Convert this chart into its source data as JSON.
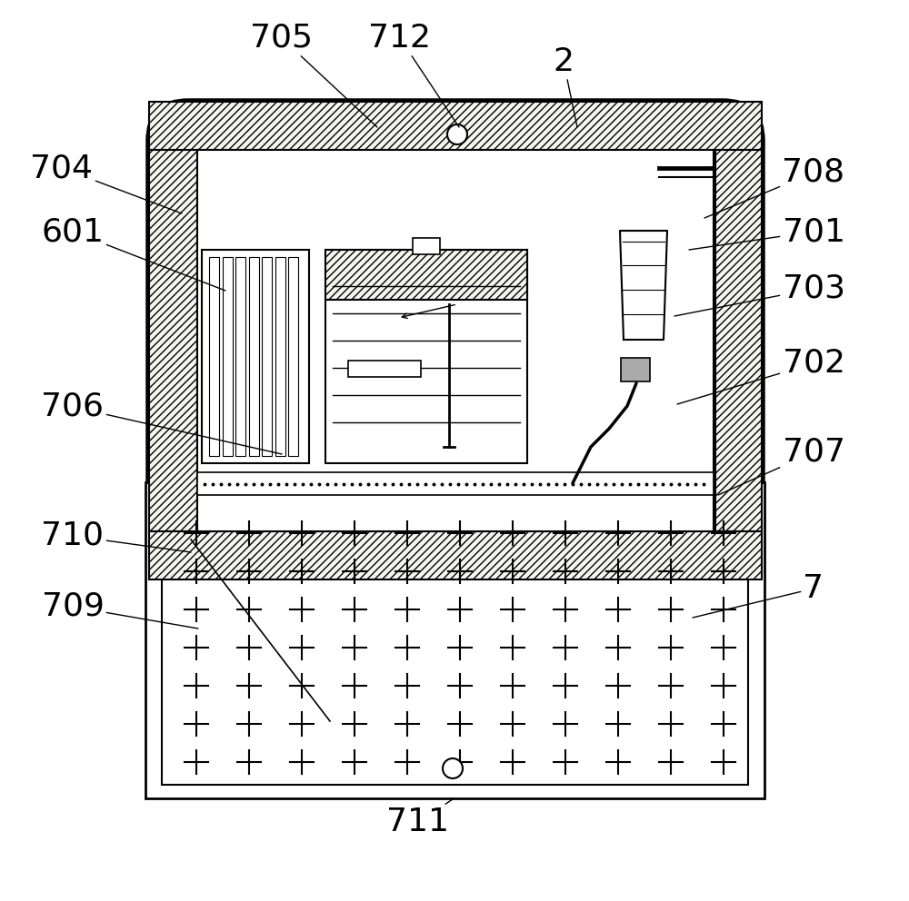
{
  "bg_color": "#ffffff",
  "line_color": "#000000",
  "figsize": [
    10.0,
    9.92
  ],
  "dpi": 100,
  "labels_data": [
    [
      "2",
      620,
      68,
      635,
      140
    ],
    [
      "705",
      310,
      42,
      415,
      140
    ],
    [
      "712",
      440,
      42,
      505,
      140
    ],
    [
      "704",
      68,
      185,
      200,
      235
    ],
    [
      "708",
      895,
      190,
      775,
      240
    ],
    [
      "601",
      80,
      255,
      248,
      320
    ],
    [
      "701",
      895,
      255,
      758,
      275
    ],
    [
      "703",
      895,
      318,
      742,
      348
    ],
    [
      "702",
      895,
      400,
      745,
      445
    ],
    [
      "706",
      80,
      448,
      310,
      500
    ],
    [
      "707",
      895,
      498,
      790,
      545
    ],
    [
      "710",
      80,
      590,
      210,
      608
    ],
    [
      "709",
      80,
      668,
      218,
      692
    ],
    [
      "7",
      895,
      648,
      762,
      680
    ],
    [
      "711",
      460,
      905,
      498,
      880
    ]
  ]
}
